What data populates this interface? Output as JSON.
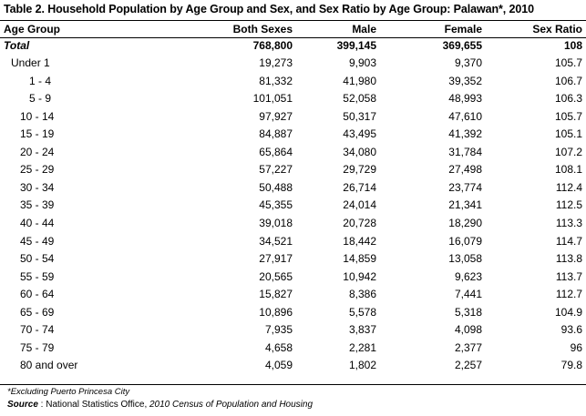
{
  "table": {
    "title": "Table 2. Household Population by Age Group and Sex, and Sex Ratio by Age Group:  Palawan*, 2010",
    "headers": [
      "Age Group",
      "Both Sexes",
      "Male",
      "Female",
      "Sex Ratio"
    ],
    "total": {
      "label": "Total",
      "both": "768,800",
      "male": "399,145",
      "female": "369,655",
      "ratio": "108"
    },
    "rows": [
      {
        "label": "Under 1",
        "both": "19,273",
        "male": "9,903",
        "female": "9,370",
        "ratio": "105.7"
      },
      {
        "label": "1 - 4",
        "both": "81,332",
        "male": "41,980",
        "female": "39,352",
        "ratio": "106.7"
      },
      {
        "label": "5 - 9",
        "both": "101,051",
        "male": "52,058",
        "female": "48,993",
        "ratio": "106.3"
      },
      {
        "label": "10 - 14",
        "both": "97,927",
        "male": "50,317",
        "female": "47,610",
        "ratio": "105.7"
      },
      {
        "label": "15 - 19",
        "both": "84,887",
        "male": "43,495",
        "female": "41,392",
        "ratio": "105.1"
      },
      {
        "label": "20 - 24",
        "both": "65,864",
        "male": "34,080",
        "female": "31,784",
        "ratio": "107.2"
      },
      {
        "label": "25 - 29",
        "both": "57,227",
        "male": "29,729",
        "female": "27,498",
        "ratio": "108.1"
      },
      {
        "label": "30 - 34",
        "both": "50,488",
        "male": "26,714",
        "female": "23,774",
        "ratio": "112.4"
      },
      {
        "label": "35 - 39",
        "both": "45,355",
        "male": "24,014",
        "female": "21,341",
        "ratio": "112.5"
      },
      {
        "label": "40 - 44",
        "both": "39,018",
        "male": "20,728",
        "female": "18,290",
        "ratio": "113.3"
      },
      {
        "label": "45 - 49",
        "both": "34,521",
        "male": "18,442",
        "female": "16,079",
        "ratio": "114.7"
      },
      {
        "label": "50 - 54",
        "both": "27,917",
        "male": "14,859",
        "female": "13,058",
        "ratio": "113.8"
      },
      {
        "label": "55 - 59",
        "both": "20,565",
        "male": "10,942",
        "female": "9,623",
        "ratio": "113.7"
      },
      {
        "label": "60 - 64",
        "both": "15,827",
        "male": "8,386",
        "female": "7,441",
        "ratio": "112.7"
      },
      {
        "label": "65 - 69",
        "both": "10,896",
        "male": "5,578",
        "female": "5,318",
        "ratio": "104.9"
      },
      {
        "label": "70 - 74",
        "both": "7,935",
        "male": "3,837",
        "female": "4,098",
        "ratio": "93.6"
      },
      {
        "label": "75 - 79",
        "both": "4,658",
        "male": "2,281",
        "female": "2,377",
        "ratio": "96"
      },
      {
        "label": "80 and over",
        "both": "4,059",
        "male": "1,802",
        "female": "2,257",
        "ratio": "79.8"
      }
    ],
    "footnote": "*Excluding Puerto Princesa City",
    "source_label": "Source",
    "source_sep": " : ",
    "source_plain": "National Statistics Office, ",
    "source_italic": "2010 Census of Population and Housing"
  }
}
